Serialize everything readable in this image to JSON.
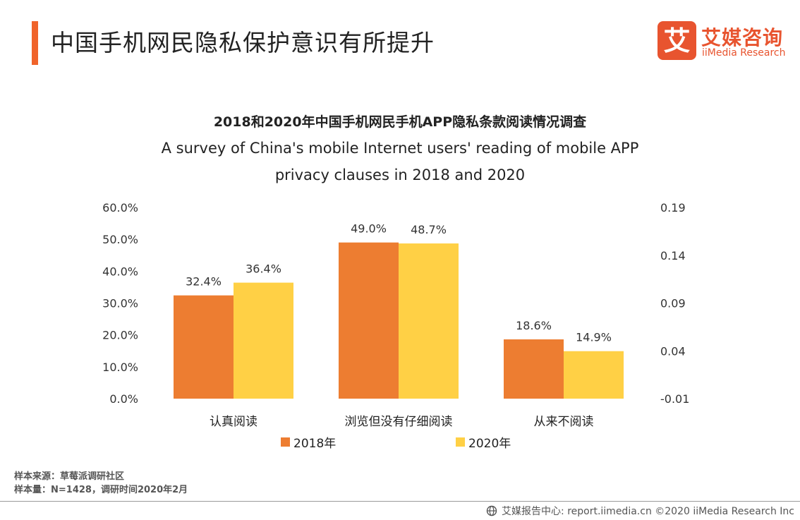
{
  "header": {
    "title": "中国手机网民隐私保护意识有所提升",
    "accent_color": "#f0632a"
  },
  "logo": {
    "icon": "iimedia-logo-icon",
    "glyph": "艾",
    "cn": "艾媒咨询",
    "en": "iiMedia Research",
    "color": "#e8542f"
  },
  "chart_data": {
    "type": "bar",
    "title_cn": "2018和2020年中国手机网民手机APP隐私条款阅读情况调查",
    "title_en_line1": "A survey of China's mobile Internet users' reading of mobile APP",
    "title_en_line2": "privacy clauses in 2018 and 2020",
    "categories": [
      "认真阅读",
      "浏览但没有仔细阅读",
      "从来不阅读"
    ],
    "series": [
      {
        "name": "2018年",
        "values": [
          32.4,
          49.0,
          18.6
        ],
        "labels": [
          "32.4%",
          "49.0%",
          "18.6%"
        ],
        "color": "#ed7d31"
      },
      {
        "name": "2020年",
        "values": [
          36.4,
          48.7,
          14.9
        ],
        "labels": [
          "36.4%",
          "48.7%",
          "14.9%"
        ],
        "color": "#ffd045"
      }
    ],
    "ylim": [
      0,
      60
    ],
    "y_ticks": [
      "0.0%",
      "10.0%",
      "20.0%",
      "30.0%",
      "40.0%",
      "50.0%",
      "60.0%"
    ],
    "y2_ticks": [
      "-0.01",
      "0.04",
      "0.09",
      "0.14",
      "0.19"
    ],
    "grid": false,
    "legend_position": "bottom"
  },
  "legend": [
    {
      "label": "2018年",
      "color": "#ed7d31"
    },
    {
      "label": "2020年",
      "color": "#ffd045"
    }
  ],
  "source": {
    "line1": "样本来源：草莓派调研社区",
    "line2": "样本量：N=1428，调研时间2020年2月"
  },
  "footer": {
    "icon": "globe-icon",
    "text": "艾媒报告中心: report.iimedia.cn  ©2020  iiMedia Research  Inc"
  }
}
